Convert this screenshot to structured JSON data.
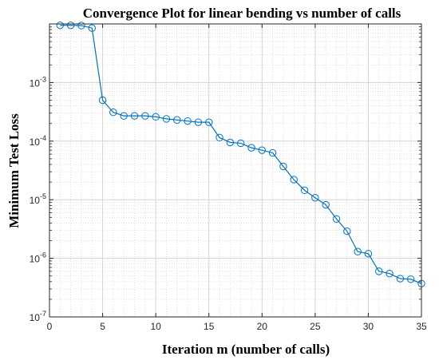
{
  "chart_data": {
    "type": "line",
    "title": "Convergence Plot for linear bending vs number of calls",
    "xlabel": "Iteration m (number of calls)",
    "ylabel": "Minimum Test Loss",
    "xlim": [
      0,
      35
    ],
    "ylim": [
      1e-07,
      0.01
    ],
    "yscale": "log",
    "grid": true,
    "minor_grid": true,
    "marker": "circle",
    "colors": {
      "series": "#0072BD",
      "grid": "#d4d4d4",
      "axis": "#262626"
    },
    "x_ticks": [
      0,
      5,
      10,
      15,
      20,
      25,
      30,
      35
    ],
    "x_tick_labels": [
      "0",
      "5",
      "10",
      "15",
      "20",
      "25",
      "30",
      "35"
    ],
    "y_ticks": [
      {
        "value": 1e-07,
        "base": "10",
        "exp": "-7"
      },
      {
        "value": 1e-06,
        "base": "10",
        "exp": "-6"
      },
      {
        "value": 1e-05,
        "base": "10",
        "exp": "-5"
      },
      {
        "value": 0.0001,
        "base": "10",
        "exp": "-4"
      },
      {
        "value": 0.001,
        "base": "10",
        "exp": "-3"
      }
    ],
    "series": [
      {
        "x": [
          1,
          2,
          3,
          4,
          5,
          6,
          7,
          8,
          9,
          10,
          11,
          12,
          13,
          14,
          15,
          16,
          17,
          18,
          19,
          20,
          21,
          22,
          23,
          24,
          25,
          26,
          27,
          28,
          29,
          30,
          31,
          32,
          33,
          34,
          35
        ],
        "values": [
          0.0095,
          0.0095,
          0.0094,
          0.0085,
          0.0005,
          0.00031,
          0.00027,
          0.00027,
          0.00027,
          0.00026,
          0.00024,
          0.00023,
          0.00022,
          0.00021,
          0.00021,
          0.000115,
          9.5e-05,
          9.2e-05,
          7.7e-05,
          7e-05,
          6.3e-05,
          3.7e-05,
          2.2e-05,
          1.45e-05,
          1.08e-05,
          8.2e-06,
          4.7e-06,
          2.9e-06,
          1.3e-06,
          1.2e-06,
          6e-07,
          5.5e-07,
          4.5e-07,
          4.4e-07,
          3.7e-07
        ]
      }
    ]
  }
}
